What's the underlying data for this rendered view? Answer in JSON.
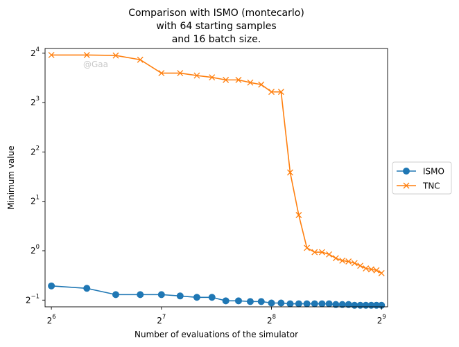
{
  "chart_data": {
    "type": "line",
    "title": [
      "Comparison with ISMO (montecarlo)",
      "with 64 starting samples",
      "and 16 batch size."
    ],
    "xlabel": "Number of evaluations of the simulator",
    "ylabel": "Minimum value",
    "xscale": "log2",
    "yscale": "log2",
    "xlim": [
      61.5,
      532
    ],
    "ylim": [
      0.455,
      17.1
    ],
    "xticks": [
      {
        "value": 64,
        "base": "2",
        "exp": "6"
      },
      {
        "value": 128,
        "base": "2",
        "exp": "7"
      },
      {
        "value": 256,
        "base": "2",
        "exp": "8"
      },
      {
        "value": 512,
        "base": "2",
        "exp": "9"
      }
    ],
    "yticks": [
      {
        "value": 0.5,
        "base": "2",
        "exp": "−1"
      },
      {
        "value": 1,
        "base": "2",
        "exp": "0"
      },
      {
        "value": 2,
        "base": "2",
        "exp": "1"
      },
      {
        "value": 4,
        "base": "2",
        "exp": "2"
      },
      {
        "value": 8,
        "base": "2",
        "exp": "3"
      },
      {
        "value": 16,
        "base": "2",
        "exp": "4"
      }
    ],
    "grid": false,
    "legend_position": "center-right-outside",
    "watermark": "@Gaa",
    "series": [
      {
        "name": "ISMO",
        "color": "#1f77b4",
        "marker": "circle",
        "x": [
          64,
          80,
          96,
          112,
          128,
          144,
          160,
          176,
          192,
          208,
          224,
          240,
          256,
          272,
          288,
          304,
          320,
          336,
          352,
          368,
          384,
          400,
          416,
          432,
          448,
          464,
          480,
          496,
          512
        ],
        "y": [
          0.61,
          0.59,
          0.54,
          0.54,
          0.54,
          0.53,
          0.52,
          0.52,
          0.495,
          0.495,
          0.49,
          0.49,
          0.48,
          0.48,
          0.475,
          0.475,
          0.475,
          0.475,
          0.475,
          0.475,
          0.47,
          0.47,
          0.47,
          0.465,
          0.465,
          0.465,
          0.465,
          0.465,
          0.465
        ]
      },
      {
        "name": "TNC",
        "color": "#ff7f0e",
        "marker": "x",
        "x": [
          64,
          80,
          96,
          112,
          128,
          144,
          160,
          176,
          192,
          208,
          224,
          240,
          256,
          272,
          288,
          304,
          320,
          336,
          352,
          368,
          384,
          400,
          416,
          432,
          448,
          464,
          480,
          496,
          512
        ],
        "y": [
          15.6,
          15.6,
          15.5,
          14.6,
          12.1,
          12.1,
          11.7,
          11.4,
          11.0,
          11.0,
          10.6,
          10.3,
          9.3,
          9.3,
          3.0,
          1.65,
          1.04,
          0.98,
          0.98,
          0.95,
          0.9,
          0.87,
          0.86,
          0.84,
          0.81,
          0.78,
          0.77,
          0.76,
          0.73
        ]
      }
    ]
  }
}
